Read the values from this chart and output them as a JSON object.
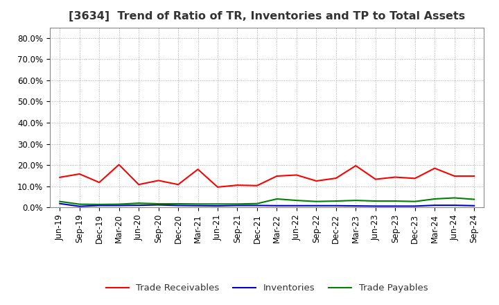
{
  "title": "[3634]  Trend of Ratio of TR, Inventories and TP to Total Assets",
  "labels": [
    "Jun-19",
    "Sep-19",
    "Dec-19",
    "Mar-20",
    "Jun-20",
    "Sep-20",
    "Dec-20",
    "Mar-21",
    "Jun-21",
    "Sep-21",
    "Dec-21",
    "Mar-22",
    "Jun-22",
    "Sep-22",
    "Dec-22",
    "Mar-23",
    "Jun-23",
    "Sep-23",
    "Dec-23",
    "Mar-24",
    "Jun-24",
    "Sep-24"
  ],
  "trade_receivables": [
    0.142,
    0.158,
    0.118,
    0.202,
    0.108,
    0.127,
    0.108,
    0.18,
    0.096,
    0.105,
    0.103,
    0.148,
    0.153,
    0.125,
    0.138,
    0.197,
    0.133,
    0.143,
    0.137,
    0.185,
    0.148,
    0.148
  ],
  "inventories": [
    0.018,
    0.005,
    0.009,
    0.009,
    0.01,
    0.012,
    0.009,
    0.008,
    0.007,
    0.009,
    0.009,
    0.008,
    0.008,
    0.008,
    0.008,
    0.007,
    0.006,
    0.006,
    0.006,
    0.01,
    0.01,
    0.008
  ],
  "trade_payables": [
    0.028,
    0.015,
    0.014,
    0.015,
    0.02,
    0.017,
    0.017,
    0.016,
    0.016,
    0.016,
    0.018,
    0.04,
    0.033,
    0.028,
    0.03,
    0.033,
    0.03,
    0.03,
    0.028,
    0.04,
    0.045,
    0.038
  ],
  "ylim": [
    0.0,
    0.85
  ],
  "yticks": [
    0.0,
    0.1,
    0.2,
    0.3,
    0.4,
    0.5,
    0.6,
    0.7,
    0.8
  ],
  "color_tr": "#ff0000",
  "color_inv": "#0000cc",
  "color_tp": "#008000",
  "legend_labels": [
    "Trade Receivables",
    "Inventories",
    "Trade Payables"
  ],
  "bg_color": "#ffffff",
  "plot_bg_color": "#ffffff",
  "grid_color": "#aaaaaa",
  "title_fontsize": 11.5,
  "tick_fontsize": 8.5,
  "legend_fontsize": 9.5,
  "title_color": "#333333"
}
